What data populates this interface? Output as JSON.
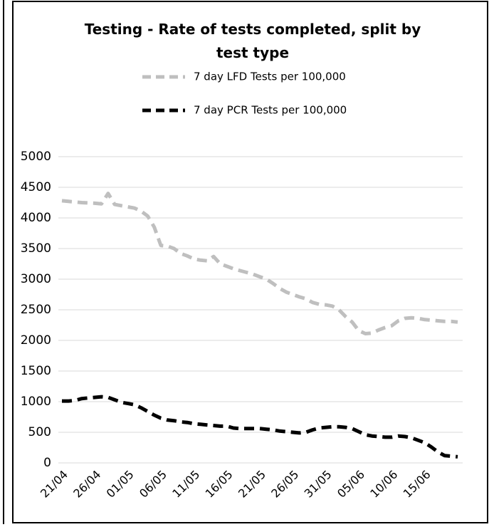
{
  "chart_data": {
    "type": "line",
    "title": "Testing - Rate of tests completed, split by test type",
    "categories": [
      "21/04",
      null,
      null,
      null,
      null,
      "26/04",
      null,
      null,
      null,
      null,
      "01/05",
      null,
      null,
      null,
      null,
      "06/05",
      null,
      null,
      null,
      null,
      "11/05",
      null,
      null,
      null,
      null,
      "16/05",
      null,
      null,
      null,
      null,
      "21/05",
      null,
      null,
      null,
      null,
      "26/05",
      null,
      null,
      null,
      null,
      "31/05",
      null,
      null,
      null,
      null,
      "05/06",
      null,
      null,
      null,
      null,
      "10/06",
      null,
      null,
      null,
      null,
      "15/06",
      null,
      null,
      null,
      null,
      null
    ],
    "series": [
      {
        "name": "7 day LFD Tests per 100,000",
        "color": "#bfbfbf",
        "values": [
          4280,
          4270,
          4260,
          4250,
          4245,
          4240,
          4230,
          4400,
          4220,
          4200,
          4180,
          4160,
          4110,
          4030,
          3850,
          3550,
          3540,
          3500,
          3420,
          3380,
          3330,
          3310,
          3300,
          3370,
          3250,
          3210,
          3170,
          3140,
          3110,
          3080,
          3040,
          3000,
          2930,
          2850,
          2790,
          2750,
          2710,
          2680,
          2620,
          2590,
          2580,
          2560,
          2500,
          2390,
          2300,
          2160,
          2110,
          2120,
          2170,
          2210,
          2240,
          2320,
          2360,
          2370,
          2360,
          2340,
          2330,
          2320,
          2310,
          2310,
          2300
        ]
      },
      {
        "name": "7 day PCR Tests per 100,000",
        "color": "#000000",
        "values": [
          1010,
          1010,
          1020,
          1050,
          1060,
          1070,
          1080,
          1070,
          1030,
          990,
          970,
          950,
          900,
          840,
          780,
          730,
          700,
          690,
          670,
          660,
          640,
          630,
          620,
          610,
          600,
          600,
          570,
          560,
          560,
          560,
          560,
          550,
          540,
          520,
          510,
          500,
          490,
          500,
          540,
          570,
          580,
          590,
          590,
          580,
          560,
          510,
          460,
          440,
          430,
          420,
          420,
          440,
          430,
          410,
          370,
          330,
          260,
          180,
          120,
          110,
          100
        ]
      }
    ],
    "ylim": [
      0,
      5000
    ],
    "yticks": [
      0,
      500,
      1000,
      1500,
      2000,
      2500,
      3000,
      3500,
      4000,
      4500,
      5000
    ],
    "grid": true,
    "legend": "top",
    "line_style": "dashed"
  }
}
